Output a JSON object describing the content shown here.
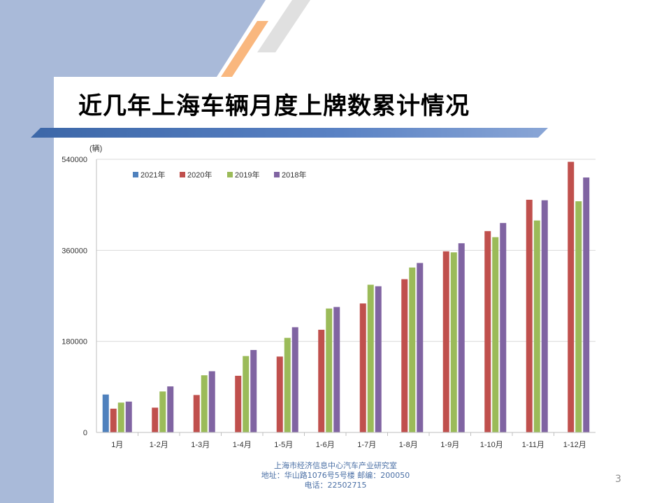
{
  "slide": {
    "title": "近几年上海车辆月度上牌数累计情况",
    "footer": {
      "line1": "上海市经济信息中心汽车产业研究室",
      "line2": "地址：华山路1076号5号楼    邮编：200050",
      "line3": "电话：22502715"
    },
    "page_number": "3"
  },
  "chart_data": {
    "type": "bar",
    "title": "",
    "ylabel": "(辆)",
    "xlabel": "",
    "ylim": [
      0,
      540000
    ],
    "yticks": [
      0,
      180000,
      360000,
      540000
    ],
    "grid": true,
    "legend_position": "top-left",
    "categories": [
      "1月",
      "1-2月",
      "1-3月",
      "1-4月",
      "1-5月",
      "1-6月",
      "1-7月",
      "1-8月",
      "1-9月",
      "1-10月",
      "1-11月",
      "1-12月"
    ],
    "series": [
      {
        "name": "2021年",
        "color": "#4f81bd",
        "values": [
          75000,
          null,
          null,
          null,
          null,
          null,
          null,
          null,
          null,
          null,
          null,
          null
        ]
      },
      {
        "name": "2020年",
        "color": "#c0504d",
        "values": [
          47000,
          49000,
          74000,
          112000,
          150000,
          203000,
          255000,
          303000,
          358000,
          398000,
          460000,
          535000
        ]
      },
      {
        "name": "2019年",
        "color": "#9bbb59",
        "values": [
          59000,
          81000,
          113000,
          151000,
          187000,
          245000,
          292000,
          326000,
          356000,
          386000,
          419000,
          457000
        ]
      },
      {
        "name": "2018年",
        "color": "#8064a2",
        "values": [
          61000,
          91000,
          121000,
          163000,
          208000,
          248000,
          289000,
          335000,
          374000,
          414000,
          459000,
          504000
        ]
      }
    ]
  }
}
